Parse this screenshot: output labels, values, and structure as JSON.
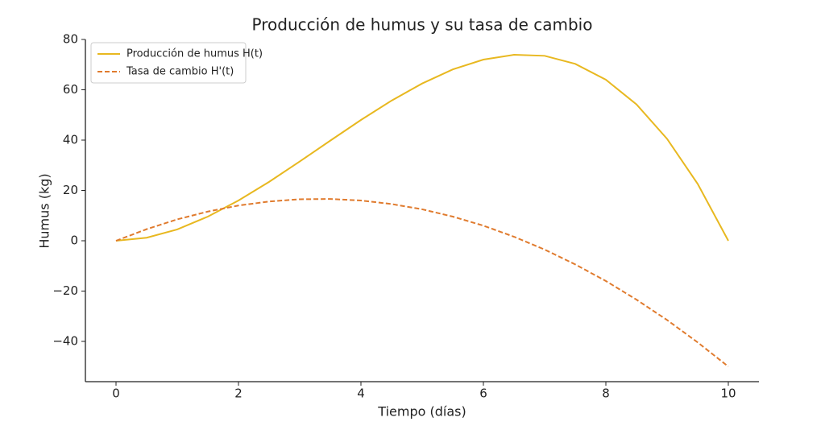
{
  "chart_data": {
    "type": "line",
    "title": "Producción de humus y su tasa de cambio",
    "x_label": "Tiempo (días)",
    "y_label": "Humus (kg)",
    "x": [
      0,
      0.5,
      1,
      1.5,
      2,
      2.5,
      3,
      3.5,
      4,
      4.5,
      5,
      5.5,
      6,
      6.5,
      7,
      7.5,
      8,
      8.5,
      9,
      9.5,
      10
    ],
    "series": [
      {
        "name": "Producción de humus H(t)",
        "color": "#e8b820",
        "dash": "solid",
        "values": [
          0,
          1.2,
          4.5,
          9.6,
          16,
          23.4,
          31.5,
          39.8,
          48,
          55.7,
          62.5,
          68.1,
          72,
          73.9,
          73.5,
          70.3,
          64,
          54.2,
          40.5,
          22.6,
          0
        ]
      },
      {
        "name": "Tasa de cambio H'(t)",
        "color": "#e07b2e",
        "dash": "dashed",
        "values": [
          0,
          4.6,
          8.5,
          11.6,
          14,
          15.6,
          16.5,
          16.6,
          16,
          14.6,
          12.5,
          9.6,
          6,
          1.6,
          -3.5,
          -9.4,
          -16,
          -23.4,
          -31.5,
          -40.4,
          -50
        ]
      }
    ],
    "xlim": [
      -0.5,
      10.5
    ],
    "ylim": [
      -56,
      80
    ],
    "xticks": [
      0,
      2,
      4,
      6,
      8,
      10
    ],
    "yticks": [
      {
        "value": -40,
        "label": "−40"
      },
      {
        "value": -20,
        "label": "−20"
      },
      0,
      20,
      40,
      60,
      80
    ],
    "legend": "upper left",
    "grid": false
  }
}
